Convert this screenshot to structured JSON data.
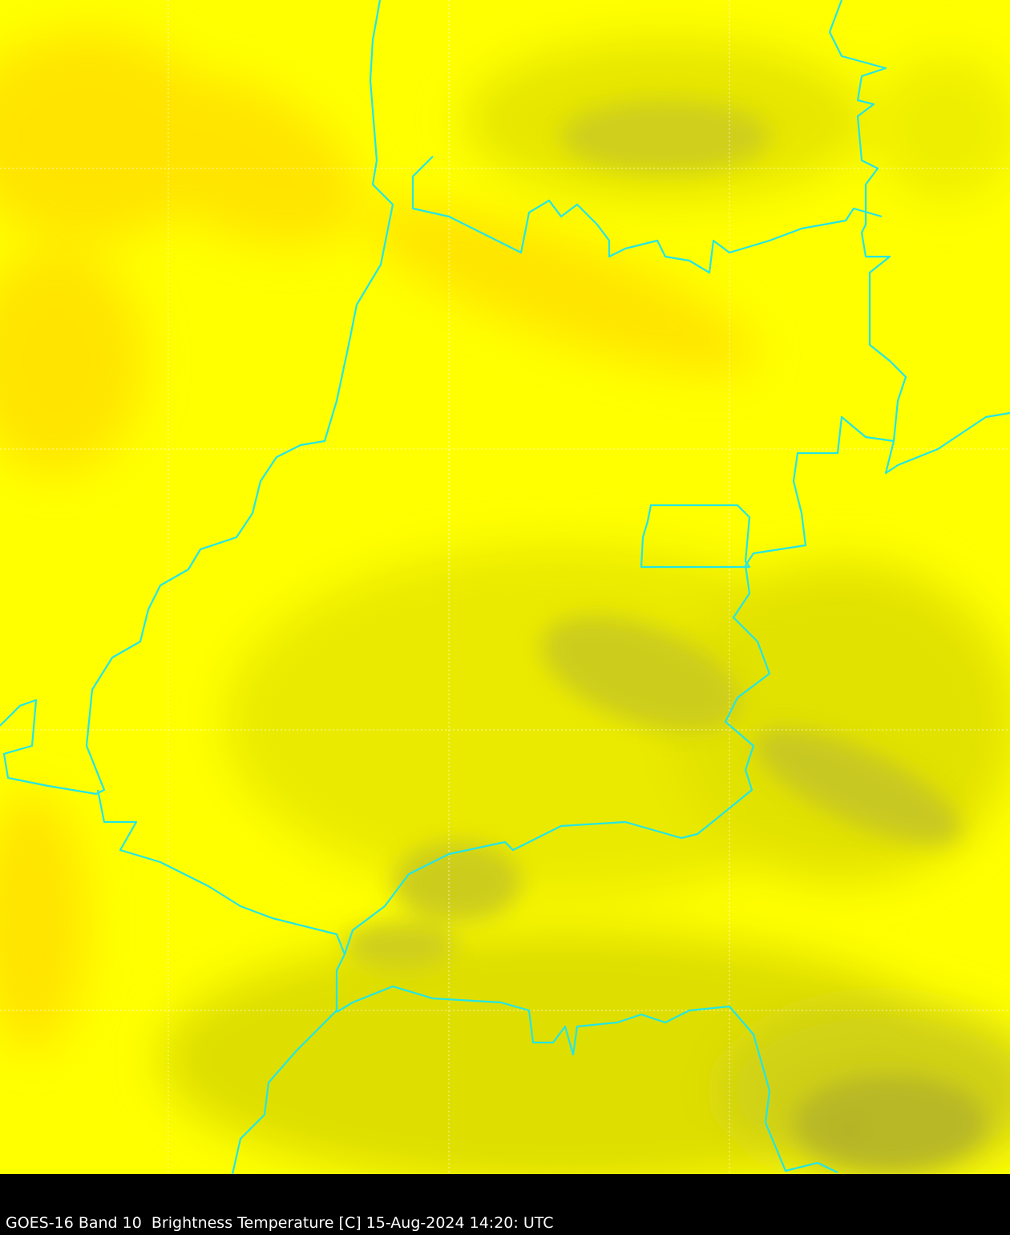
{
  "caption": "GOES-16 Band 10  Brightness Temperature [C] 15-Aug-2024 14:20: UTC",
  "map": {
    "product": "brightness temperature imagery",
    "colors": {
      "warm": "#ffff00",
      "orange": "#ffdd00",
      "mid": "#e6e600",
      "cool": "#cccc18",
      "coldest": "#a8a830",
      "borders": "#22e6e6",
      "grid": "#ffffff"
    },
    "gridlines": "dotted white",
    "frame": "black"
  }
}
